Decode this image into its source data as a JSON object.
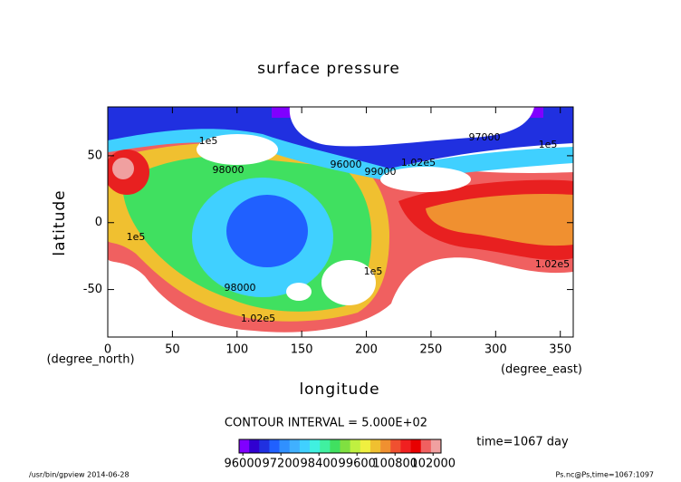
{
  "chart_data": {
    "type": "contour",
    "title": "surface pressure",
    "xlabel": "longitude",
    "ylabel": "latitude",
    "xunit": "(degree_east)",
    "yunit": "(degree_north)",
    "xlim": [
      0,
      360
    ],
    "xticks": [
      0,
      50,
      100,
      150,
      200,
      250,
      300,
      350
    ],
    "ylim": [
      -85.5,
      86.5
    ],
    "yticks": [
      -50,
      0,
      50
    ],
    "contour_interval": "CONTOUR INTERVAL = 5.000E+02",
    "annotations": [
      "1e5",
      "98000",
      "96000",
      "99000",
      "1.02e5",
      "97000",
      "1e5",
      "1e5",
      "98000",
      "1.02e5",
      "1e5",
      "1.02e5"
    ],
    "colorbar": {
      "lim": [
        95880,
        102250
      ],
      "ticks": [
        96000,
        97200,
        98400,
        99600,
        100800,
        102000
      ],
      "colors": [
        "#8000ff",
        "#3000d0",
        "#2030e0",
        "#2060ff",
        "#3090ff",
        "#40b0ff",
        "#40d0ff",
        "#40f0e0",
        "#40f0a0",
        "#40e060",
        "#80e040",
        "#c0f040",
        "#f0f040",
        "#f0c030",
        "#f09030",
        "#f05030",
        "#f02020",
        "#e80000",
        "#f06060",
        "#f0a0a0"
      ]
    },
    "time_label": "time=1067 day",
    "footer_left": "/usr/bin/gpview  2014-06-28",
    "footer_right": "Ps.nc@Ps,time=1067:1097"
  }
}
